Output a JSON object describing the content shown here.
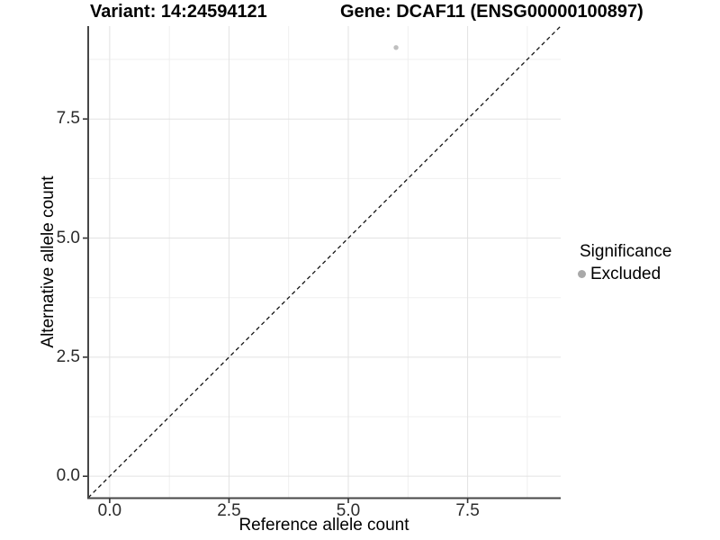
{
  "titles": {
    "variant": "Variant: 14:24594121",
    "gene": "Gene: DCAF11 (ENSG00000100897)"
  },
  "chart_data": {
    "type": "scatter",
    "xlabel": "Reference allele count",
    "ylabel": "Alternative allele count",
    "xlim": [
      -0.45,
      9.45
    ],
    "ylim": [
      -0.45,
      9.45
    ],
    "x_ticks": [
      0.0,
      2.5,
      5.0,
      7.5
    ],
    "y_ticks": [
      0.0,
      2.5,
      5.0,
      7.5
    ],
    "x_minor_ticks": [
      1.25,
      3.75,
      6.25,
      8.75
    ],
    "y_minor_ticks": [
      1.25,
      3.75,
      6.25,
      8.75
    ],
    "grid": true,
    "points": [
      {
        "x": 6,
        "y": 9,
        "group": "Excluded"
      }
    ],
    "reference_line": {
      "slope": 1,
      "intercept": 0,
      "style": "dashed"
    },
    "legend": {
      "title": "Significance",
      "position": "right",
      "entries": [
        {
          "label": "Excluded",
          "color": "#a9a9a9"
        }
      ]
    },
    "colors": {
      "point": "#bfbfbf",
      "dashed_line": "#141414",
      "grid_major": "#e2e2e2",
      "grid_minor": "#efefef",
      "axis_line": "#474747",
      "tick_mark": "#333333"
    }
  }
}
